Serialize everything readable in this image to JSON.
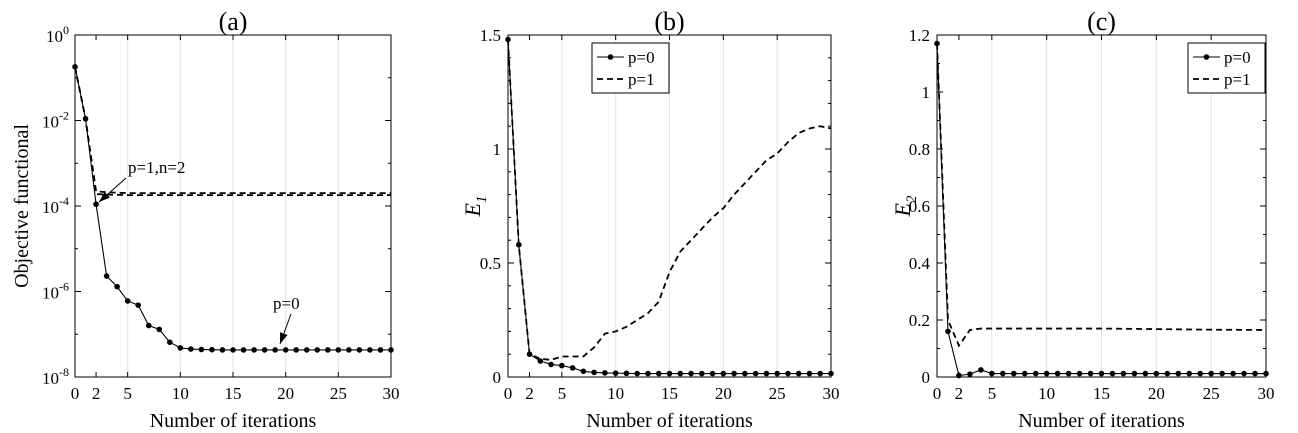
{
  "chart_data": [
    {
      "type": "line",
      "panel_label": "(a)",
      "xlabel": "Number of iterations",
      "ylabel": "Objective functional",
      "yscale": "log",
      "xlim": [
        0,
        30
      ],
      "ylim": [
        1e-08,
        1
      ],
      "x_ticks": [
        "0",
        "2",
        "5",
        "10",
        "15",
        "20",
        "25",
        "30"
      ],
      "y_ticks": [
        {
          "base": "10",
          "exp": "-8"
        },
        {
          "base": "10",
          "exp": "-6"
        },
        {
          "base": "10",
          "exp": "-4"
        },
        {
          "base": "10",
          "exp": "-2"
        },
        {
          "base": "10",
          "exp": "0"
        }
      ],
      "grid": "vertical",
      "series": [
        {
          "name": "p=0",
          "style": "solid-dot",
          "x": [
            0,
            1,
            2,
            3,
            4,
            5,
            6,
            7,
            8,
            9,
            10,
            11,
            12,
            13,
            14,
            15,
            16,
            17,
            18,
            19,
            20,
            21,
            22,
            23,
            24,
            25,
            26,
            27,
            28,
            29,
            30
          ],
          "y": [
            0.18,
            0.011,
            0.00011,
            2.3e-06,
            1.3e-06,
            6e-07,
            4.8e-07,
            1.6e-07,
            1.3e-07,
            6.5e-08,
            4.8e-08,
            4.5e-08,
            4.4e-08,
            4.35e-08,
            4.3e-08,
            4.3e-08,
            4.3e-08,
            4.3e-08,
            4.3e-08,
            4.3e-08,
            4.3e-08,
            4.3e-08,
            4.3e-08,
            4.3e-08,
            4.3e-08,
            4.3e-08,
            4.3e-08,
            4.3e-08,
            4.3e-08,
            4.3e-08,
            4.3e-08
          ]
        },
        {
          "name": "p=1,n=2",
          "style": "dashed",
          "x": [
            0,
            1,
            2,
            3,
            5,
            10,
            15,
            20,
            25,
            30
          ],
          "y": [
            0.18,
            0.011,
            0.00022,
            0.00021,
            0.0002,
            0.0002,
            0.0002,
            0.0002,
            0.0002,
            0.0002
          ]
        },
        {
          "name": "p=1,n=2",
          "style": "dashed",
          "x": [
            0,
            1,
            2,
            3,
            5,
            10,
            15,
            20,
            25,
            30
          ],
          "y": [
            0.18,
            0.011,
            0.00019,
            0.000185,
            0.00018,
            0.00018,
            0.00018,
            0.00018,
            0.00018,
            0.00018
          ]
        }
      ],
      "annotations": [
        {
          "text": "p=1,n=2",
          "points_to": [
            2,
            0.0002
          ]
        },
        {
          "text": "p=0",
          "points_to": [
            19,
            4.3e-08
          ]
        }
      ]
    },
    {
      "type": "line",
      "panel_label": "(b)",
      "xlabel": "Number of iterations",
      "ylabel": "E",
      "ylabel_sub": "1",
      "xlim": [
        0,
        30
      ],
      "ylim": [
        0,
        1.5
      ],
      "x_ticks": [
        "0",
        "2",
        "5",
        "10",
        "15",
        "20",
        "25",
        "30"
      ],
      "y_ticks": [
        "0",
        "0.5",
        "1",
        "1.5"
      ],
      "grid": "vertical",
      "legend": "top-center",
      "series": [
        {
          "name": "p=0",
          "style": "solid-dot",
          "x": [
            0,
            1,
            2,
            3,
            4,
            5,
            6,
            7,
            8,
            9,
            10,
            11,
            12,
            13,
            14,
            15,
            16,
            17,
            18,
            19,
            20,
            21,
            22,
            23,
            24,
            25,
            26,
            27,
            28,
            29,
            30
          ],
          "y": [
            1.48,
            0.58,
            0.1,
            0.07,
            0.055,
            0.05,
            0.04,
            0.025,
            0.02,
            0.018,
            0.017,
            0.016,
            0.015,
            0.015,
            0.015,
            0.015,
            0.015,
            0.015,
            0.015,
            0.015,
            0.015,
            0.015,
            0.015,
            0.015,
            0.015,
            0.015,
            0.015,
            0.015,
            0.015,
            0.015,
            0.015
          ]
        },
        {
          "name": "p=1",
          "style": "dashed",
          "x": [
            0,
            1,
            2,
            3,
            4,
            5,
            6,
            7,
            8,
            9,
            10,
            11,
            12,
            13,
            14,
            15,
            16,
            17,
            18,
            19,
            20,
            21,
            22,
            23,
            24,
            25,
            26,
            27,
            28,
            29,
            30
          ],
          "y": [
            1.48,
            0.58,
            0.1,
            0.08,
            0.075,
            0.09,
            0.09,
            0.09,
            0.13,
            0.19,
            0.2,
            0.22,
            0.25,
            0.28,
            0.33,
            0.46,
            0.55,
            0.6,
            0.65,
            0.7,
            0.74,
            0.8,
            0.85,
            0.9,
            0.95,
            0.98,
            1.03,
            1.07,
            1.09,
            1.1,
            1.09
          ]
        }
      ]
    },
    {
      "type": "line",
      "panel_label": "(c)",
      "xlabel": "Number of iterations",
      "ylabel": "E",
      "ylabel_sub": "2",
      "xlim": [
        0,
        30
      ],
      "ylim": [
        0,
        1.2
      ],
      "x_ticks": [
        "0",
        "2",
        "5",
        "10",
        "15",
        "20",
        "25",
        "30"
      ],
      "y_ticks": [
        "0",
        "0.2",
        "0.4",
        "0.6",
        "0.8",
        "1",
        "1.2"
      ],
      "grid": "vertical",
      "legend": "top-right",
      "series": [
        {
          "name": "p=0",
          "style": "solid-dot",
          "x": [
            0,
            1,
            2,
            3,
            4,
            5,
            6,
            7,
            8,
            9,
            10,
            11,
            12,
            13,
            14,
            15,
            16,
            17,
            18,
            19,
            20,
            21,
            22,
            23,
            24,
            25,
            26,
            27,
            28,
            29,
            30
          ],
          "y": [
            1.17,
            0.16,
            0.005,
            0.01,
            0.025,
            0.012,
            0.012,
            0.012,
            0.012,
            0.012,
            0.012,
            0.012,
            0.012,
            0.012,
            0.012,
            0.012,
            0.012,
            0.012,
            0.012,
            0.012,
            0.012,
            0.012,
            0.012,
            0.012,
            0.012,
            0.012,
            0.012,
            0.012,
            0.012,
            0.012,
            0.012
          ]
        },
        {
          "name": "p=1",
          "style": "dashed",
          "x": [
            0,
            1,
            2,
            3,
            4,
            5,
            10,
            15,
            20,
            25,
            30
          ],
          "y": [
            1.17,
            0.2,
            0.11,
            0.165,
            0.17,
            0.17,
            0.17,
            0.17,
            0.168,
            0.166,
            0.165
          ]
        }
      ]
    }
  ]
}
